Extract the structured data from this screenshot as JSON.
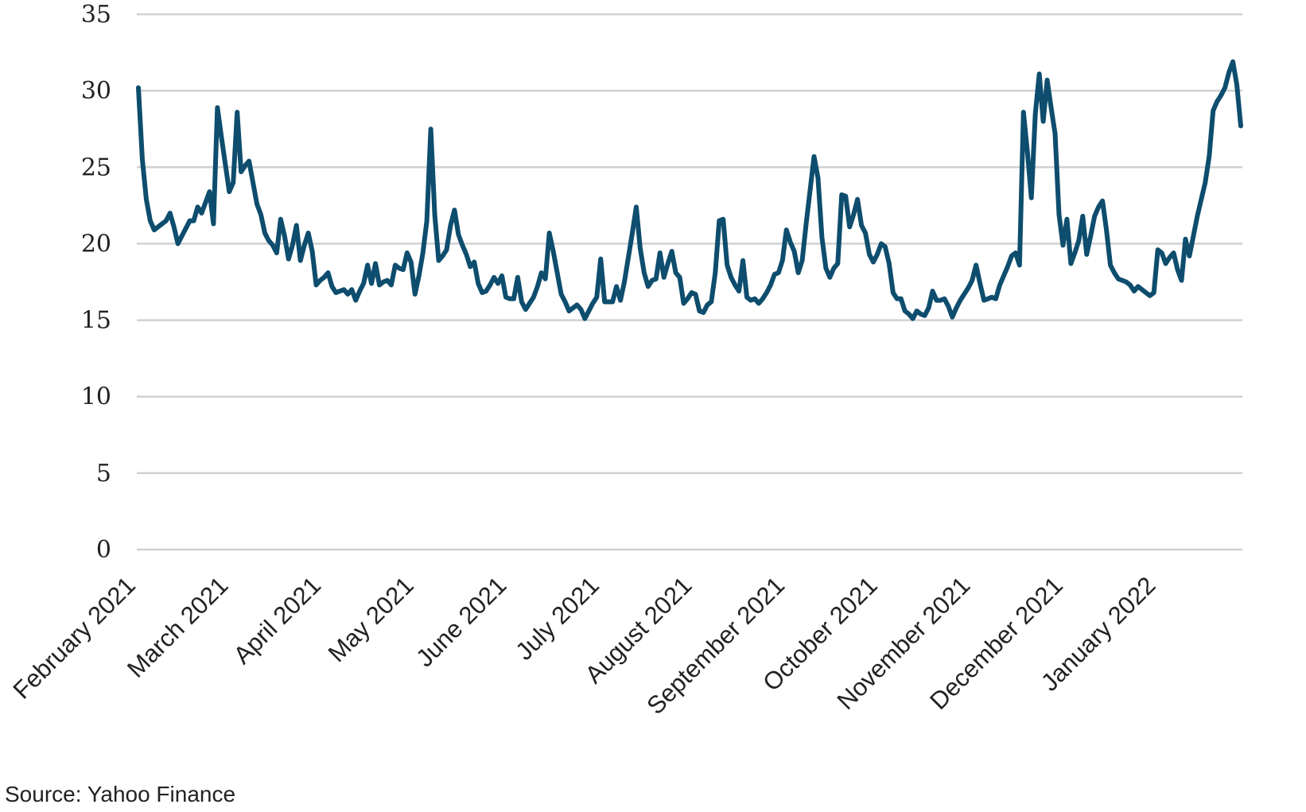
{
  "chart_data": {
    "type": "line",
    "ylim": [
      0,
      35
    ],
    "yticks": [
      "0",
      "5",
      "10",
      "15",
      "20",
      "25",
      "30",
      "35"
    ],
    "xticks": [
      "February 2021",
      "March 2021",
      "April 2021",
      "May 2021",
      "June 2021",
      "July 2021",
      "August 2021",
      "September 2021",
      "October 2021",
      "November 2021",
      "December 2021",
      "January 2022"
    ],
    "grid": true,
    "color": "#0e4d6e",
    "series": [
      {
        "values": [
          30.2,
          25.5,
          22.9,
          21.5,
          20.9,
          21.1,
          21.3,
          21.5,
          22.0,
          21.1,
          20.0,
          20.5,
          21.0,
          21.5,
          21.5,
          22.4,
          22.0,
          22.7,
          23.4,
          21.3,
          28.9,
          27.0,
          25.2,
          23.4,
          24.0,
          28.6,
          24.7,
          25.1,
          25.4,
          24.0,
          22.6,
          21.9,
          20.7,
          20.2,
          19.9,
          19.4,
          21.6,
          20.5,
          19.0,
          19.9,
          21.2,
          18.9,
          19.9,
          20.7,
          19.5,
          17.3,
          17.6,
          17.8,
          18.1,
          17.2,
          16.8,
          16.9,
          17.0,
          16.7,
          17.0,
          16.3,
          16.9,
          17.4,
          18.6,
          17.4,
          18.7,
          17.3,
          17.5,
          17.6,
          17.3,
          18.6,
          18.4,
          18.3,
          19.4,
          18.8,
          16.7,
          17.9,
          19.4,
          21.5,
          27.5,
          21.9,
          18.9,
          19.2,
          19.6,
          21.2,
          22.2,
          20.6,
          19.9,
          19.3,
          18.5,
          18.8,
          17.4,
          16.8,
          16.9,
          17.3,
          17.8,
          17.4,
          17.9,
          16.5,
          16.4,
          16.4,
          17.8,
          16.2,
          15.7,
          16.1,
          16.5,
          17.2,
          18.1,
          17.7,
          20.7,
          19.5,
          18.1,
          16.7,
          16.2,
          15.6,
          15.8,
          16.0,
          15.7,
          15.1,
          15.6,
          16.1,
          16.5,
          19.0,
          16.2,
          16.2,
          16.2,
          17.2,
          16.3,
          17.5,
          19.1,
          20.7,
          22.4,
          19.7,
          18.1,
          17.2,
          17.6,
          17.7,
          19.4,
          17.8,
          18.7,
          19.5,
          18.1,
          17.8,
          16.1,
          16.4,
          16.8,
          16.7,
          15.6,
          15.5,
          16.0,
          16.2,
          18.1,
          21.5,
          21.6,
          18.6,
          17.8,
          17.3,
          16.9,
          18.9,
          16.5,
          16.3,
          16.4,
          16.1,
          16.4,
          16.8,
          17.3,
          18.0,
          18.1,
          18.9,
          20.9,
          20.1,
          19.5,
          18.1,
          18.9,
          21.3,
          23.5,
          25.7,
          24.3,
          20.4,
          18.4,
          17.8,
          18.4,
          18.7,
          23.2,
          23.1,
          21.1,
          21.9,
          22.9,
          21.2,
          20.7,
          19.3,
          18.8,
          19.3,
          20.0,
          19.8,
          18.7,
          16.8,
          16.4,
          16.4,
          15.6,
          15.4,
          15.1,
          15.6,
          15.4,
          15.3,
          15.8,
          16.9,
          16.3,
          16.3,
          16.4,
          15.9,
          15.2,
          15.8,
          16.3,
          16.7,
          17.1,
          17.6,
          18.6,
          17.4,
          16.3,
          16.4,
          16.5,
          16.4,
          17.3,
          17.9,
          18.5,
          19.2,
          19.4,
          18.6,
          28.6,
          26.0,
          23.0,
          28.5,
          31.1,
          28.0,
          30.7,
          28.9,
          27.2,
          21.9,
          19.9,
          21.6,
          18.7,
          19.4,
          20.2,
          21.8,
          19.3,
          20.5,
          21.8,
          22.4,
          22.8,
          20.9,
          18.6,
          18.1,
          17.7,
          17.6,
          17.5,
          17.3,
          16.9,
          17.2,
          17.0,
          16.8,
          16.6,
          16.8,
          19.6,
          19.4,
          18.7,
          19.1,
          19.4,
          18.3,
          17.6,
          20.3,
          19.2,
          20.5,
          21.8,
          22.9,
          24.0,
          25.7,
          28.7,
          29.3,
          29.7,
          30.2,
          31.2,
          31.9,
          30.4,
          27.7
        ]
      }
    ]
  },
  "source_note": "Source: Yahoo Finance"
}
